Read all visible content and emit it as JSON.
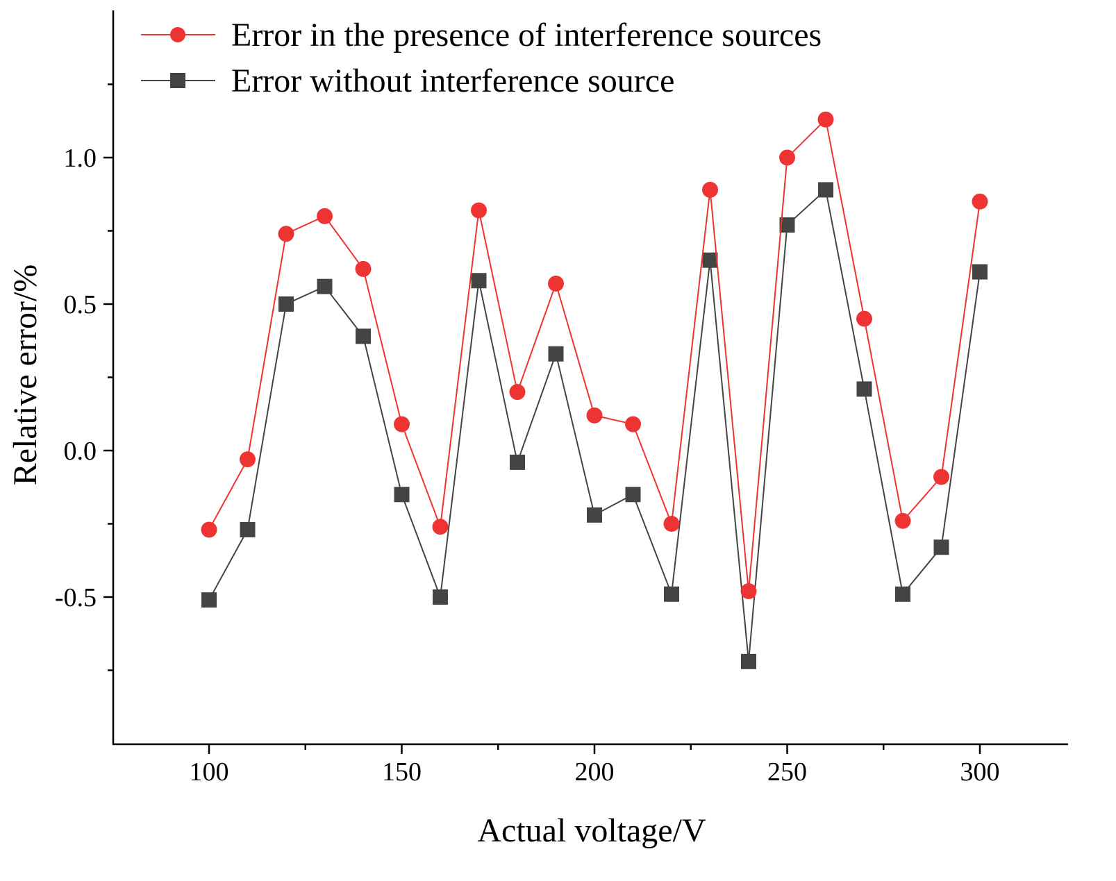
{
  "chart_data": {
    "type": "line",
    "title": "",
    "xlabel": "Actual voltage/V",
    "ylabel": "Relative error/%",
    "xlim": [
      75,
      325
    ],
    "ylim": [
      -1.0,
      1.5
    ],
    "x_ticks": [
      100,
      150,
      200,
      250,
      300
    ],
    "x_minor_ticks": [
      125,
      175,
      225,
      275
    ],
    "y_ticks": [
      -0.5,
      0.0,
      0.5,
      1.0
    ],
    "y_minor_ticks": [
      -0.75,
      -0.25,
      0.25,
      0.75,
      1.25
    ],
    "x_tick_labels": [
      "100",
      "150",
      "200",
      "250",
      "300"
    ],
    "y_tick_labels": [
      "-0.5",
      "0.0",
      "0.5",
      "1.0"
    ],
    "grid": false,
    "legend_position": "top-left",
    "x": [
      100,
      110,
      120,
      130,
      140,
      150,
      160,
      170,
      180,
      190,
      200,
      210,
      220,
      230,
      240,
      250,
      260,
      270,
      280,
      290,
      300
    ],
    "series": [
      {
        "name": "Error in the presence of interference sources",
        "color": "#ee3333",
        "marker": "circle",
        "values": [
          -0.27,
          -0.03,
          0.74,
          0.8,
          0.62,
          0.09,
          -0.26,
          0.82,
          0.2,
          0.57,
          0.12,
          0.09,
          -0.25,
          0.89,
          -0.48,
          1.0,
          1.13,
          0.45,
          -0.24,
          -0.09,
          0.85
        ]
      },
      {
        "name": "Error without interference source",
        "color": "#444444",
        "marker": "square",
        "values": [
          -0.51,
          -0.27,
          0.5,
          0.56,
          0.39,
          -0.15,
          -0.5,
          0.58,
          -0.04,
          0.33,
          -0.22,
          -0.15,
          -0.49,
          0.65,
          -0.72,
          0.77,
          0.89,
          0.21,
          -0.49,
          -0.33,
          0.61
        ]
      }
    ]
  }
}
